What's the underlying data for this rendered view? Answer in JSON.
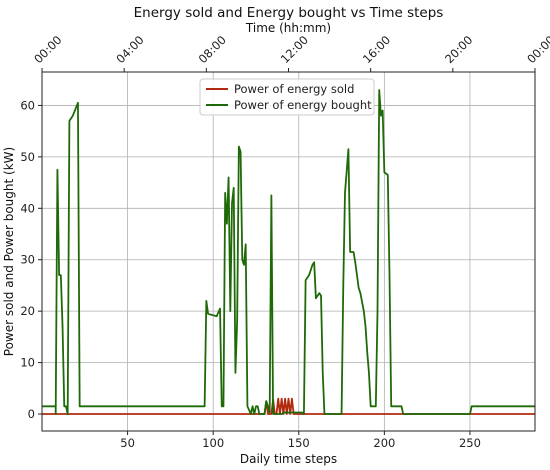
{
  "chart_data": {
    "type": "line",
    "title": "Energy sold and Energy bought vs Time steps",
    "xlabel": "Daily time steps",
    "ylabel": "Power sold and Power bought (kW)",
    "top_axis_label": "Time (hh:mm)",
    "xlim": [
      0,
      288
    ],
    "ylim": [
      -3.3,
      66.5
    ],
    "xticks": [
      50,
      100,
      150,
      200,
      250
    ],
    "yticks": [
      0,
      10,
      20,
      30,
      40,
      50,
      60
    ],
    "top_ticks": [
      {
        "x": 0,
        "label": "00:00"
      },
      {
        "x": 48,
        "label": "04:00"
      },
      {
        "x": 96,
        "label": "08:00"
      },
      {
        "x": 144,
        "label": "12:00"
      },
      {
        "x": 192,
        "label": "16:00"
      },
      {
        "x": 240,
        "label": "20:00"
      },
      {
        "x": 288,
        "label": "00:00"
      }
    ],
    "grid": true,
    "legend_position": "upper-center",
    "series": [
      {
        "name": "Power of energy sold",
        "color": "#b22a0e",
        "points": [
          [
            0,
            0
          ],
          [
            130,
            0
          ],
          [
            131,
            2.5
          ],
          [
            132,
            0
          ],
          [
            134,
            0
          ],
          [
            135,
            2.8
          ],
          [
            136,
            0
          ],
          [
            137,
            0
          ],
          [
            138,
            3
          ],
          [
            139,
            0
          ],
          [
            140,
            3
          ],
          [
            141,
            0
          ],
          [
            142,
            3
          ],
          [
            143,
            0
          ],
          [
            144,
            3
          ],
          [
            145,
            0
          ],
          [
            146,
            3
          ],
          [
            147,
            0
          ],
          [
            148,
            0
          ],
          [
            288,
            0
          ]
        ]
      },
      {
        "name": "Power of energy bought",
        "color": "#1f6a08",
        "points": [
          [
            0,
            1.5
          ],
          [
            8,
            1.5
          ],
          [
            8,
            0
          ],
          [
            9,
            47.5
          ],
          [
            10,
            27
          ],
          [
            11,
            27
          ],
          [
            12,
            17
          ],
          [
            13,
            1.5
          ],
          [
            14,
            1.5
          ],
          [
            15,
            0
          ],
          [
            16,
            57
          ],
          [
            18,
            58
          ],
          [
            21,
            60.5
          ],
          [
            22,
            1.5
          ],
          [
            60,
            1.5
          ],
          [
            95,
            1.5
          ],
          [
            96,
            22
          ],
          [
            97,
            19.5
          ],
          [
            102,
            19
          ],
          [
            104,
            20.5
          ],
          [
            105,
            1.5
          ],
          [
            106,
            1.5
          ],
          [
            107,
            43
          ],
          [
            108,
            37
          ],
          [
            109,
            46
          ],
          [
            110,
            20
          ],
          [
            111,
            41
          ],
          [
            112,
            44
          ],
          [
            113,
            8
          ],
          [
            114,
            18
          ],
          [
            115,
            52
          ],
          [
            116,
            51
          ],
          [
            117,
            30
          ],
          [
            118,
            29
          ],
          [
            119,
            33
          ],
          [
            120,
            1.5
          ],
          [
            122,
            0
          ],
          [
            123,
            1.5
          ],
          [
            124,
            0
          ],
          [
            125,
            1.5
          ],
          [
            126,
            1.5
          ],
          [
            127,
            0
          ],
          [
            130,
            0
          ],
          [
            131,
            2.5
          ],
          [
            132,
            1.5
          ],
          [
            133,
            0.3
          ],
          [
            134,
            42.5
          ],
          [
            135,
            0
          ],
          [
            136,
            0
          ],
          [
            140,
            0
          ],
          [
            141,
            0.3
          ],
          [
            152,
            0.3
          ],
          [
            153,
            0
          ],
          [
            154,
            26
          ],
          [
            156,
            27
          ],
          [
            158,
            29
          ],
          [
            159,
            29.5
          ],
          [
            160,
            22.5
          ],
          [
            162,
            23.5
          ],
          [
            163,
            23
          ],
          [
            164,
            8
          ],
          [
            165,
            0
          ],
          [
            175,
            0
          ],
          [
            176,
            25
          ],
          [
            177,
            43
          ],
          [
            179,
            51.5
          ],
          [
            180,
            31.5
          ],
          [
            182,
            31.5
          ],
          [
            183,
            29.5
          ],
          [
            185,
            24.5
          ],
          [
            186,
            23.5
          ],
          [
            188,
            20
          ],
          [
            189,
            17
          ],
          [
            190,
            12
          ],
          [
            191,
            8
          ],
          [
            192,
            1.5
          ],
          [
            195,
            1.5
          ],
          [
            196,
            20
          ],
          [
            197,
            63
          ],
          [
            198,
            58
          ],
          [
            199,
            59
          ],
          [
            200,
            47
          ],
          [
            202,
            46.5
          ],
          [
            203,
            27
          ],
          [
            204,
            1.5
          ],
          [
            210,
            1.5
          ],
          [
            211,
            0
          ],
          [
            250,
            0
          ],
          [
            251,
            1.5
          ],
          [
            288,
            1.5
          ]
        ]
      }
    ]
  }
}
